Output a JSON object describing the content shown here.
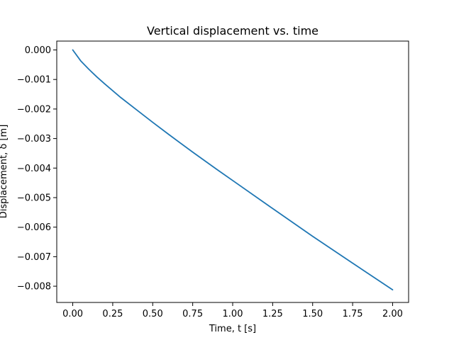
{
  "chart_data": {
    "type": "line",
    "title": "Vertical displacement vs. time",
    "xlabel": "Time, t [s]",
    "ylabel": "Displacement, δ [m]",
    "xlim": [
      -0.1,
      2.1
    ],
    "ylim": [
      -0.00855,
      0.0003
    ],
    "xticks": [
      0.0,
      0.25,
      0.5,
      0.75,
      1.0,
      1.25,
      1.5,
      1.75,
      2.0
    ],
    "xtick_labels": [
      "0.00",
      "0.25",
      "0.50",
      "0.75",
      "1.00",
      "1.25",
      "1.50",
      "1.75",
      "2.00"
    ],
    "yticks": [
      0.0,
      -0.001,
      -0.002,
      -0.003,
      -0.004,
      -0.005,
      -0.006,
      -0.007,
      -0.008
    ],
    "ytick_labels": [
      "0.000",
      "−0.001",
      "−0.002",
      "−0.003",
      "−0.004",
      "−0.005",
      "−0.006",
      "−0.007",
      "−0.008"
    ],
    "grid": false,
    "legend": "none",
    "series": [
      {
        "color": "#1f77b4",
        "x": [
          0.0,
          0.05,
          0.1,
          0.15,
          0.2,
          0.25,
          0.3,
          0.4,
          0.5,
          0.6,
          0.75,
          0.9,
          1.0,
          1.25,
          1.5,
          1.75,
          2.0
        ],
        "y": [
          0.0,
          -0.00037,
          -0.00065,
          -0.00091,
          -0.00115,
          -0.00138,
          -0.00161,
          -0.00203,
          -0.00245,
          -0.00286,
          -0.00346,
          -0.00404,
          -0.00442,
          -0.00537,
          -0.00631,
          -0.00722,
          -0.00812
        ]
      }
    ]
  }
}
